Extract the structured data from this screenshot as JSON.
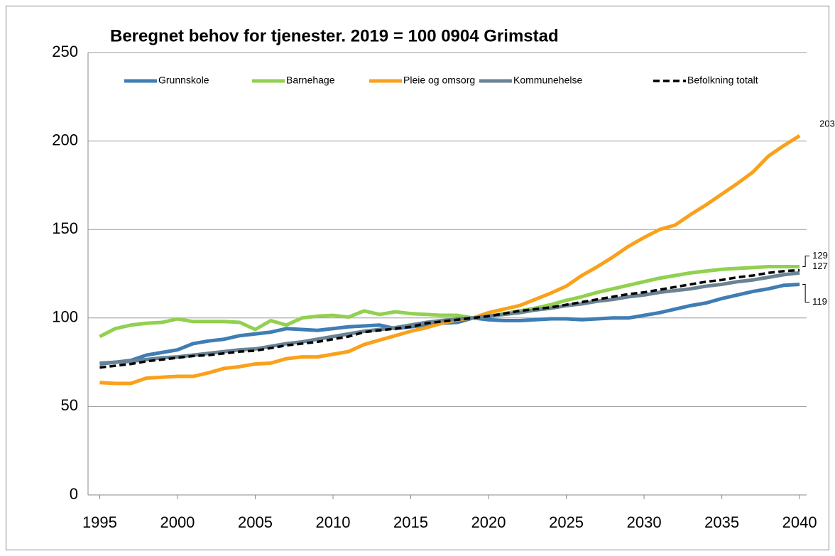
{
  "chart_data": {
    "type": "line",
    "title": "Beregnet behov for tjenester.  2019 = 100  0904 Grimstad",
    "x": [
      1995,
      1996,
      1997,
      1998,
      1999,
      2000,
      2001,
      2002,
      2003,
      2004,
      2005,
      2006,
      2007,
      2008,
      2009,
      2010,
      2011,
      2012,
      2013,
      2014,
      2015,
      2016,
      2017,
      2018,
      2019,
      2020,
      2021,
      2022,
      2023,
      2024,
      2025,
      2026,
      2027,
      2028,
      2029,
      2030,
      2031,
      2032,
      2033,
      2034,
      2035,
      2036,
      2037,
      2038,
      2039,
      2040
    ],
    "xlim": [
      1994.25,
      2040.45
    ],
    "xticks": [
      1995,
      2000,
      2005,
      2010,
      2015,
      2020,
      2025,
      2030,
      2035,
      2040
    ],
    "ylim": [
      0,
      250
    ],
    "yticks": [
      0,
      50,
      100,
      150,
      200,
      250
    ],
    "grid": true,
    "legend": "top",
    "series": [
      {
        "name": "Grunnskole",
        "color": "#3f7db4",
        "dashed": false,
        "values": [
          74,
          75,
          76,
          79,
          80.5,
          82,
          85.5,
          87,
          88,
          90,
          91,
          92,
          94,
          93.5,
          93,
          94,
          95,
          95.5,
          96,
          94,
          95,
          96,
          97,
          97.5,
          100,
          99,
          98.5,
          98.5,
          99,
          99.5,
          99.5,
          99,
          99.5,
          100,
          100,
          101.5,
          103,
          105,
          107,
          108.5,
          111,
          113,
          115,
          116.5,
          118.5,
          119
        ],
        "value_labels": [
          null,
          null,
          null,
          null,
          null,
          null,
          null,
          null,
          null,
          null,
          null,
          null,
          null,
          null,
          null,
          null,
          null,
          null,
          null,
          null,
          null,
          null,
          null,
          null,
          null,
          null,
          null,
          null,
          null,
          null,
          null,
          null,
          null,
          null,
          null,
          null,
          null,
          null,
          null,
          null,
          null,
          null,
          null,
          null,
          null,
          "119"
        ]
      },
      {
        "name": "Barnehage",
        "color": "#92d050",
        "dashed": false,
        "values": [
          89.5,
          94,
          96,
          97,
          97.5,
          99.5,
          98,
          98,
          98,
          97.5,
          93.5,
          98.5,
          96,
          100,
          101,
          101.5,
          100.5,
          104,
          102,
          103.5,
          102.5,
          102,
          101.5,
          101.5,
          100,
          101,
          102.5,
          104,
          105.5,
          107.5,
          110,
          112,
          114.5,
          116.5,
          118.5,
          120.5,
          122.5,
          124,
          125.5,
          126.5,
          127.5,
          128,
          128.5,
          129,
          129,
          129
        ],
        "value_labels": [
          null,
          null,
          null,
          null,
          null,
          null,
          null,
          null,
          null,
          null,
          null,
          null,
          null,
          null,
          null,
          null,
          null,
          null,
          null,
          null,
          null,
          null,
          null,
          null,
          null,
          null,
          null,
          null,
          null,
          null,
          null,
          null,
          null,
          null,
          null,
          null,
          null,
          null,
          null,
          null,
          null,
          null,
          null,
          null,
          null,
          "129"
        ]
      },
      {
        "name": "Pleie og omsorg",
        "color": "#f9a11b",
        "dashed": false,
        "values": [
          63.5,
          63,
          63,
          66,
          66.5,
          67,
          67,
          69,
          71.5,
          72.5,
          74,
          74.5,
          77,
          78,
          78,
          79.5,
          81,
          85,
          87.5,
          90,
          92.5,
          94.5,
          97,
          99,
          100,
          103,
          105,
          107,
          110.5,
          114,
          118,
          124,
          129,
          134.5,
          140.5,
          145.5,
          150,
          152.5,
          158.5,
          164,
          170,
          176,
          182.5,
          191.5,
          197.5,
          203
        ],
        "value_labels": [
          null,
          null,
          null,
          null,
          null,
          null,
          null,
          null,
          null,
          null,
          null,
          null,
          null,
          null,
          null,
          null,
          null,
          null,
          null,
          null,
          null,
          null,
          null,
          null,
          null,
          null,
          null,
          null,
          null,
          null,
          null,
          null,
          null,
          null,
          null,
          null,
          null,
          null,
          null,
          null,
          null,
          null,
          null,
          null,
          null,
          "203"
        ]
      },
      {
        "name": "Kommunehelse",
        "color": "#6a8394",
        "dashed": false,
        "values": [
          74.5,
          75,
          75.5,
          76.5,
          77.5,
          78,
          79,
          80,
          81,
          82,
          82.5,
          84,
          85.5,
          86.5,
          88,
          89.5,
          91,
          92.5,
          93.5,
          94.5,
          96,
          97.5,
          98.5,
          99.5,
          100,
          101,
          102,
          103,
          104.5,
          105.5,
          107,
          108,
          109.5,
          110.5,
          112,
          113,
          114.5,
          115.5,
          116.5,
          118,
          119,
          120.5,
          121.5,
          123,
          124.5,
          125.5
        ]
      },
      {
        "name": "Befolkning totalt",
        "color": "#000000",
        "dashed": true,
        "values": [
          72,
          73,
          74,
          75.5,
          76.5,
          77.5,
          78.5,
          79,
          80,
          81,
          81.5,
          83,
          84.5,
          85.5,
          86.5,
          88,
          89.5,
          92,
          93,
          94,
          95,
          97,
          98,
          99,
          100,
          101,
          102.5,
          104,
          105,
          106,
          107.5,
          109,
          110.5,
          112,
          113.5,
          114.5,
          116,
          117.5,
          119,
          120.5,
          121.5,
          123,
          124,
          125.5,
          126.5,
          127
        ],
        "value_labels": [
          null,
          null,
          null,
          null,
          null,
          null,
          null,
          null,
          null,
          null,
          null,
          null,
          null,
          null,
          null,
          null,
          null,
          null,
          null,
          null,
          null,
          null,
          null,
          null,
          null,
          null,
          null,
          null,
          null,
          null,
          null,
          null,
          null,
          null,
          null,
          null,
          null,
          null,
          null,
          null,
          null,
          null,
          null,
          null,
          null,
          "127"
        ]
      }
    ]
  }
}
